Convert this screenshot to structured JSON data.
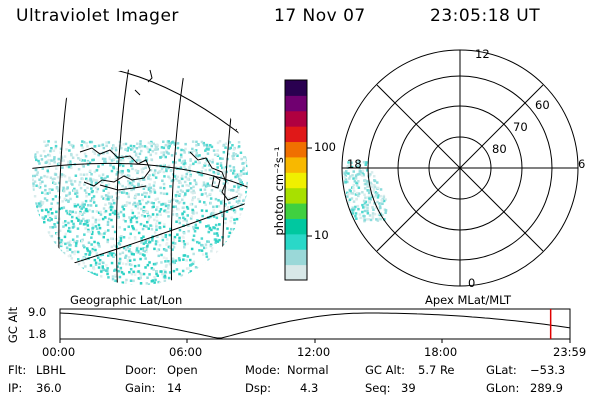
{
  "header": {
    "instrument": "Ultraviolet Imager",
    "date": "17 Nov 07",
    "time": "23:05:18 UT"
  },
  "colorbar": {
    "unit_label": "photon cm⁻²s⁻¹",
    "ticks": [
      {
        "label": "100",
        "value": 100
      },
      {
        "label": "10",
        "value": 10
      }
    ],
    "colors": [
      "#d8e8e8",
      "#9ad8d8",
      "#2ad8c8",
      "#00c8a0",
      "#40d040",
      "#a8e000",
      "#f0f000",
      "#f8b800",
      "#f07000",
      "#e01818",
      "#b00040",
      "#700070",
      "#2a0050"
    ]
  },
  "geo_panel": {
    "title": "Geographic Lat/Lon"
  },
  "polar_panel": {
    "title": "Apex  MLat/MLT",
    "mlt_labels": [
      "12",
      "6",
      "0",
      "18"
    ],
    "lat_labels": [
      "60",
      "70",
      "80"
    ]
  },
  "timeline": {
    "ylabel": "GC Alt",
    "yticks": [
      "9.0",
      "1.8"
    ],
    "xticks": [
      "00:00",
      "06:00",
      "12:00",
      "18:00",
      "23:59"
    ],
    "current_time_hours": 23.09
  },
  "info": {
    "flt_label": "Flt:",
    "flt_value": "LBHL",
    "ip_label": "IP:",
    "ip_value": "36.0",
    "door_label": "Door:",
    "door_value": "Open",
    "gain_label": "Gain:",
    "gain_value": "14",
    "mode_label": "Mode:",
    "mode_value": "Normal",
    "dsp_label": "Dsp:",
    "dsp_value": "4.3",
    "gcalt_label": "GC Alt:",
    "gcalt_value": "5.7 Re",
    "seq_label": "Seq:",
    "seq_value": "39",
    "glat_label": "GLat:",
    "glat_value": "−53.3",
    "glon_label": "GLon:",
    "glon_value": "289.9"
  }
}
